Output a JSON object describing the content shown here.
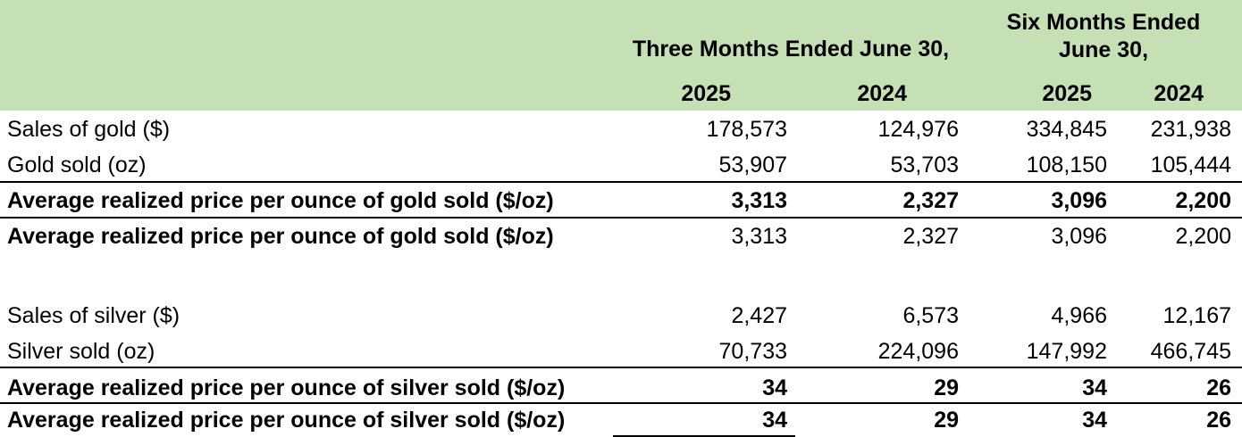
{
  "header": {
    "three_months": "Three Months Ended June 30,",
    "six_months_line1": "Six Months Ended",
    "six_months_line2": "June 30,",
    "years": [
      "2025",
      "2024",
      "2025",
      "2024"
    ]
  },
  "gold": {
    "rows": [
      {
        "label": "Sales of gold ($)",
        "values": [
          "178,573",
          "124,976",
          "334,845",
          "231,938"
        ]
      },
      {
        "label": "Gold sold (oz)",
        "values": [
          "53,907",
          "53,703",
          "108,150",
          "105,444"
        ]
      },
      {
        "label": "Average realized price per ounce of gold sold ($/oz)",
        "values": [
          "3,313",
          "2,327",
          "3,096",
          "2,200"
        ]
      },
      {
        "label": "Average realized price per ounce of gold sold ($/oz)",
        "values": [
          "3,313",
          "2,327",
          "3,096",
          "2,200"
        ]
      }
    ]
  },
  "silver": {
    "rows": [
      {
        "label": "Sales of silver ($)",
        "values": [
          "2,427",
          "6,573",
          "4,966",
          "12,167"
        ]
      },
      {
        "label": "Silver sold (oz)",
        "values": [
          "70,733",
          "224,096",
          "147,992",
          "466,745"
        ]
      },
      {
        "label": "Average realized price per ounce of silver sold ($/oz)",
        "values": [
          "34",
          "29",
          "34",
          "26"
        ]
      },
      {
        "label": "Average realized price per ounce of silver sold ($/oz)",
        "values": [
          "34",
          "29",
          "34",
          "26"
        ]
      }
    ]
  },
  "colors": {
    "header_background": "#c5e0b4"
  }
}
